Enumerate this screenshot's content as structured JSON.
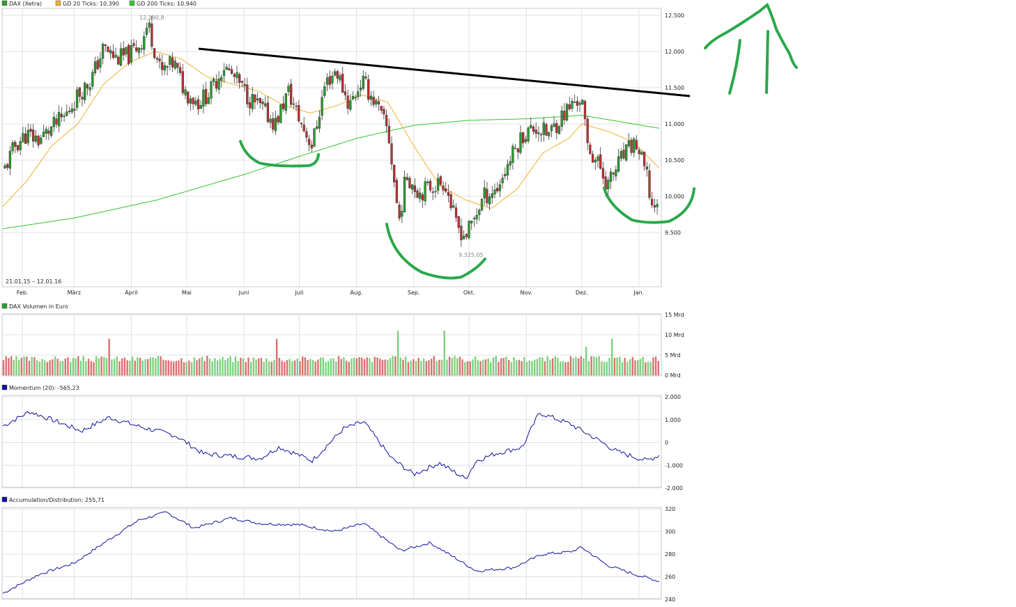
{
  "chart_data": [
    {
      "type": "candlestick",
      "legend": [
        {
          "label": "DAX (Xetra)",
          "color": "#2a9d2a"
        },
        {
          "label": "GD 20 Ticks: 10.390",
          "color": "#f0b030"
        },
        {
          "label": "GD 200 Ticks: 10.940",
          "color": "#2ec82e"
        }
      ],
      "date_range": "21.01.15 – 12.01.16",
      "x_tick_labels": [
        "Feb.",
        "März",
        "April",
        "Mai",
        "Juni",
        "Juli",
        "Aug.",
        "Sep.",
        "Okt.",
        "Nov.",
        "Dez.",
        "Jan."
      ],
      "y_tick_labels": [
        "12.500",
        "12.000",
        "11.500",
        "11.000",
        "10.500",
        "10.000",
        "9.500"
      ],
      "ylim": [
        9000,
        12600
      ],
      "annotations": {
        "high": "12.390,8",
        "low": "9.325,05"
      },
      "close_series": [
        {
          "date": "2015-01-21",
          "close": 10300
        },
        {
          "date": "2015-01-28",
          "close": 10700
        },
        {
          "date": "2015-02-03",
          "close": 10850
        },
        {
          "date": "2015-02-10",
          "close": 10780
        },
        {
          "date": "2015-02-17",
          "close": 10950
        },
        {
          "date": "2015-02-24",
          "close": 11100
        },
        {
          "date": "2015-03-03",
          "close": 11400
        },
        {
          "date": "2015-03-10",
          "close": 11600
        },
        {
          "date": "2015-03-17",
          "close": 12050
        },
        {
          "date": "2015-03-24",
          "close": 11900
        },
        {
          "date": "2015-03-31",
          "close": 11950
        },
        {
          "date": "2015-04-07",
          "close": 12150
        },
        {
          "date": "2015-04-10",
          "close": 12390
        },
        {
          "date": "2015-04-17",
          "close": 11700
        },
        {
          "date": "2015-04-24",
          "close": 11850
        },
        {
          "date": "2015-04-30",
          "close": 11450
        },
        {
          "date": "2015-05-07",
          "close": 11300
        },
        {
          "date": "2015-05-14",
          "close": 11450
        },
        {
          "date": "2015-05-21",
          "close": 11800
        },
        {
          "date": "2015-05-28",
          "close": 11600
        },
        {
          "date": "2015-06-04",
          "close": 11350
        },
        {
          "date": "2015-06-11",
          "close": 11200
        },
        {
          "date": "2015-06-18",
          "close": 11000
        },
        {
          "date": "2015-06-25",
          "close": 11450
        },
        {
          "date": "2015-07-02",
          "close": 11000
        },
        {
          "date": "2015-07-08",
          "close": 10700
        },
        {
          "date": "2015-07-15",
          "close": 11550
        },
        {
          "date": "2015-07-21",
          "close": 11750
        },
        {
          "date": "2015-07-28",
          "close": 11250
        },
        {
          "date": "2015-08-04",
          "close": 11600
        },
        {
          "date": "2015-08-11",
          "close": 11300
        },
        {
          "date": "2015-08-18",
          "close": 10900
        },
        {
          "date": "2015-08-21",
          "close": 10300
        },
        {
          "date": "2015-08-24",
          "close": 9650
        },
        {
          "date": "2015-08-28",
          "close": 10300
        },
        {
          "date": "2015-09-04",
          "close": 10050
        },
        {
          "date": "2015-09-11",
          "close": 10150
        },
        {
          "date": "2015-09-18",
          "close": 10200
        },
        {
          "date": "2015-09-24",
          "close": 9600
        },
        {
          "date": "2015-09-29",
          "close": 9450
        },
        {
          "date": "2015-10-02",
          "close": 9600
        },
        {
          "date": "2015-10-09",
          "close": 10000
        },
        {
          "date": "2015-10-16",
          "close": 10100
        },
        {
          "date": "2015-10-23",
          "close": 10500
        },
        {
          "date": "2015-10-30",
          "close": 10850
        },
        {
          "date": "2015-11-06",
          "close": 10950
        },
        {
          "date": "2015-11-13",
          "close": 10850
        },
        {
          "date": "2015-11-20",
          "close": 11100
        },
        {
          "date": "2015-11-27",
          "close": 11300
        },
        {
          "date": "2015-12-01",
          "close": 11350
        },
        {
          "date": "2015-12-04",
          "close": 10700
        },
        {
          "date": "2015-12-11",
          "close": 10400
        },
        {
          "date": "2015-12-15",
          "close": 10150
        },
        {
          "date": "2015-12-22",
          "close": 10500
        },
        {
          "date": "2015-12-30",
          "close": 10750
        },
        {
          "date": "2016-01-05",
          "close": 10300
        },
        {
          "date": "2016-01-08",
          "close": 9850
        },
        {
          "date": "2016-01-12",
          "close": 9980
        }
      ],
      "series": [
        {
          "name": "GD 20 Ticks",
          "points": [
            {
              "date": "2015-01-21",
              "value": 9850
            },
            {
              "date": "2015-02-03",
              "value": 10200
            },
            {
              "date": "2015-02-17",
              "value": 10700
            },
            {
              "date": "2015-03-03",
              "value": 11000
            },
            {
              "date": "2015-03-17",
              "value": 11550
            },
            {
              "date": "2015-03-31",
              "value": 11850
            },
            {
              "date": "2015-04-14",
              "value": 12000
            },
            {
              "date": "2015-04-28",
              "value": 11900
            },
            {
              "date": "2015-05-12",
              "value": 11650
            },
            {
              "date": "2015-05-26",
              "value": 11550
            },
            {
              "date": "2015-06-09",
              "value": 11450
            },
            {
              "date": "2015-06-23",
              "value": 11250
            },
            {
              "date": "2015-07-07",
              "value": 11150
            },
            {
              "date": "2015-07-21",
              "value": 11250
            },
            {
              "date": "2015-08-04",
              "value": 11400
            },
            {
              "date": "2015-08-18",
              "value": 11300
            },
            {
              "date": "2015-09-01",
              "value": 10700
            },
            {
              "date": "2015-09-15",
              "value": 10150
            },
            {
              "date": "2015-09-29",
              "value": 9950
            },
            {
              "date": "2015-10-13",
              "value": 9830
            },
            {
              "date": "2015-10-27",
              "value": 10100
            },
            {
              "date": "2015-11-10",
              "value": 10600
            },
            {
              "date": "2015-11-24",
              "value": 10800
            },
            {
              "date": "2015-12-01",
              "value": 11000
            },
            {
              "date": "2015-12-15",
              "value": 10900
            },
            {
              "date": "2015-12-29",
              "value": 10750
            },
            {
              "date": "2016-01-12",
              "value": 10390
            }
          ]
        },
        {
          "name": "GD 200 Ticks",
          "points": [
            {
              "date": "2015-01-21",
              "value": 9550
            },
            {
              "date": "2015-03-01",
              "value": 9700
            },
            {
              "date": "2015-04-15",
              "value": 9950
            },
            {
              "date": "2015-06-01",
              "value": 10300
            },
            {
              "date": "2015-07-01",
              "value": 10550
            },
            {
              "date": "2015-08-01",
              "value": 10800
            },
            {
              "date": "2015-09-01",
              "value": 10980
            },
            {
              "date": "2015-10-01",
              "value": 11050
            },
            {
              "date": "2015-11-01",
              "value": 11070
            },
            {
              "date": "2015-12-01",
              "value": 11120
            },
            {
              "date": "2016-01-12",
              "value": 10940
            }
          ]
        }
      ]
    },
    {
      "type": "bar",
      "legend": [
        {
          "label": "DAX Volumen in Euro",
          "color": "#2a9d2a"
        }
      ],
      "y_tick_labels": [
        "15 Mrd",
        "10 Mrd",
        "5 Mrd",
        "0 Mrd"
      ],
      "ylim": [
        0,
        15
      ],
      "unit": "Mrd",
      "peaks": [
        {
          "date": "2015-03-20",
          "value": 9
        },
        {
          "date": "2015-06-19",
          "value": 9
        },
        {
          "date": "2015-08-24",
          "value": 11
        },
        {
          "date": "2015-09-18",
          "value": 11
        },
        {
          "date": "2015-12-04",
          "value": 7
        },
        {
          "date": "2015-12-18",
          "value": 9
        }
      ],
      "typical_value": 4
    },
    {
      "type": "line",
      "legend": [
        {
          "label": "Momentum (20): -565,23",
          "color": "#1010a0"
        }
      ],
      "y_tick_labels": [
        "2.000",
        "1.000",
        "0",
        "-1.000",
        "-2.000"
      ],
      "ylim": [
        -2000,
        2000
      ],
      "series": [
        {
          "name": "Momentum (20)",
          "points": [
            {
              "date": "2015-01-21",
              "value": 700
            },
            {
              "date": "2015-02-05",
              "value": 1350
            },
            {
              "date": "2015-02-20",
              "value": 900
            },
            {
              "date": "2015-03-05",
              "value": 500
            },
            {
              "date": "2015-03-20",
              "value": 1100
            },
            {
              "date": "2015-04-05",
              "value": 700
            },
            {
              "date": "2015-04-25",
              "value": 300
            },
            {
              "date": "2015-05-10",
              "value": -500
            },
            {
              "date": "2015-05-25",
              "value": -600
            },
            {
              "date": "2015-06-10",
              "value": -700
            },
            {
              "date": "2015-06-20",
              "value": -200
            },
            {
              "date": "2015-07-08",
              "value": -800
            },
            {
              "date": "2015-07-25",
              "value": 600
            },
            {
              "date": "2015-08-05",
              "value": 900
            },
            {
              "date": "2015-08-20",
              "value": -700
            },
            {
              "date": "2015-09-01",
              "value": -1400
            },
            {
              "date": "2015-09-15",
              "value": -900
            },
            {
              "date": "2015-09-29",
              "value": -1600
            },
            {
              "date": "2015-10-05",
              "value": -800
            },
            {
              "date": "2015-10-15",
              "value": -500
            },
            {
              "date": "2015-10-30",
              "value": -200
            },
            {
              "date": "2015-11-08",
              "value": 1300
            },
            {
              "date": "2015-11-25",
              "value": 800
            },
            {
              "date": "2015-12-10",
              "value": 100
            },
            {
              "date": "2015-12-20",
              "value": -400
            },
            {
              "date": "2016-01-05",
              "value": -800
            },
            {
              "date": "2016-01-12",
              "value": -565
            }
          ]
        }
      ]
    },
    {
      "type": "line",
      "legend": [
        {
          "label": "Accumulation/Distribution: 255,71",
          "color": "#1010a0"
        }
      ],
      "y_tick_labels": [
        "320",
        "300",
        "280",
        "260",
        "240"
      ],
      "ylim": [
        240,
        320
      ],
      "series": [
        {
          "name": "Accumulation/Distribution",
          "points": [
            {
              "date": "2015-01-21",
              "value": 245
            },
            {
              "date": "2015-02-10",
              "value": 262
            },
            {
              "date": "2015-03-01",
              "value": 272
            },
            {
              "date": "2015-03-20",
              "value": 293
            },
            {
              "date": "2015-04-05",
              "value": 310
            },
            {
              "date": "2015-04-20",
              "value": 317
            },
            {
              "date": "2015-05-05",
              "value": 303
            },
            {
              "date": "2015-05-25",
              "value": 312
            },
            {
              "date": "2015-06-10",
              "value": 307
            },
            {
              "date": "2015-07-01",
              "value": 306
            },
            {
              "date": "2015-07-20",
              "value": 300
            },
            {
              "date": "2015-08-05",
              "value": 307
            },
            {
              "date": "2015-08-25",
              "value": 283
            },
            {
              "date": "2015-09-10",
              "value": 290
            },
            {
              "date": "2015-09-25",
              "value": 275
            },
            {
              "date": "2015-10-05",
              "value": 265
            },
            {
              "date": "2015-10-25",
              "value": 268
            },
            {
              "date": "2015-11-10",
              "value": 280
            },
            {
              "date": "2015-11-25",
              "value": 282
            },
            {
              "date": "2015-12-01",
              "value": 286
            },
            {
              "date": "2015-12-15",
              "value": 270
            },
            {
              "date": "2015-12-30",
              "value": 262
            },
            {
              "date": "2016-01-12",
              "value": 256
            }
          ]
        }
      ]
    }
  ],
  "colors": {
    "bull_candle": "#2a9d2a",
    "bear_candle": "#c03030",
    "gd20": "#f0b030",
    "gd200": "#2ec82e",
    "indicator": "#1010a0",
    "volume_up": "#7dd07d",
    "volume_down": "#d87070",
    "trendline": "#000000",
    "markup": "#2aa84a"
  },
  "markup": {
    "description_icons": [
      "resistance-trendline",
      "shoulder-arc-left",
      "head-arc",
      "shoulder-arc-right",
      "up-arrows"
    ]
  }
}
